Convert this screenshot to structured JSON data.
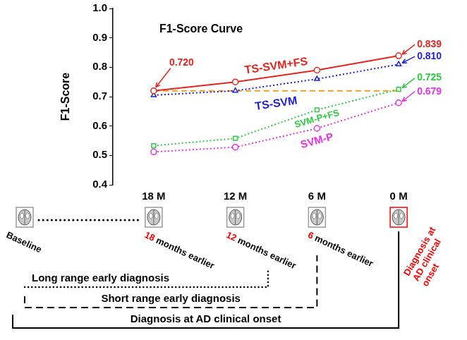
{
  "chart_data": {
    "type": "line",
    "title": "F1-Score Curve",
    "y_label": "F1-Score",
    "categories": [
      "18 M",
      "12 M",
      "6 M",
      "0 M"
    ],
    "series": [
      {
        "name": "TS-SVM+FS",
        "color": "#e8251f",
        "values": [
          0.72,
          0.75,
          0.79,
          0.839
        ],
        "marker": "circle",
        "line_style": "solid"
      },
      {
        "name": "TS-SVM",
        "color": "#1f1fd6",
        "values": [
          0.705,
          0.72,
          0.76,
          0.81
        ],
        "marker": "triangle",
        "line_style": "dotted"
      },
      {
        "name": "SVM-P+FS",
        "color": "#2ecc40",
        "values": [
          0.533,
          0.558,
          0.655,
          0.725
        ],
        "marker": "square",
        "line_style": "dotted"
      },
      {
        "name": "SVM-P",
        "color": "#e633e6",
        "values": [
          0.512,
          0.528,
          0.592,
          0.679
        ],
        "marker": "circle",
        "line_style": "dotted"
      },
      {
        "color": "#f0a020",
        "values": [
          0.72,
          0.72,
          0.72,
          0.72
        ],
        "marker": "none",
        "line_style": "dashed"
      }
    ],
    "ylim": [
      0.4,
      1
    ],
    "yticks": [
      0.4,
      0.5,
      0.6,
      0.7,
      0.8,
      0.9,
      {
        "value": 1,
        "label": "1.0"
      }
    ],
    "grid": false,
    "annotations": [
      {
        "text": "0.720",
        "series": "TS-SVM+FS",
        "category": "18 M"
      },
      {
        "text": "0.839",
        "series": "TS-SVM+FS",
        "category": "0 M"
      },
      {
        "text": "0.810",
        "series": "TS-SVM",
        "category": "0 M"
      },
      {
        "text": "0.725",
        "series": "SVM-P+FS",
        "category": "0 M"
      },
      {
        "text": "0.679",
        "series": "SVM-P",
        "category": "0 M"
      }
    ]
  },
  "timeline": {
    "points": [
      {
        "label": "Baseline",
        "color": "#000000"
      },
      {
        "label": "18 months earlier",
        "color": "#000000",
        "number_color": "#ff0000"
      },
      {
        "label": "12 months earlier",
        "color": "#000000",
        "number_color": "#ff0000"
      },
      {
        "label": "6 months earlier",
        "color": "#000000",
        "number_color": "#ff0000"
      },
      {
        "label": "Diagnosis at AD clinical onset",
        "color": "#ff0000",
        "frame_color": "#ff0000"
      }
    ],
    "ranges": [
      {
        "label": "Long range early diagnosis",
        "line_style": "dotted"
      },
      {
        "label": "Short range early diagnosis",
        "line_style": "dashed"
      },
      {
        "label": "Diagnosis at AD clinical onset",
        "line_style": "solid"
      }
    ]
  }
}
